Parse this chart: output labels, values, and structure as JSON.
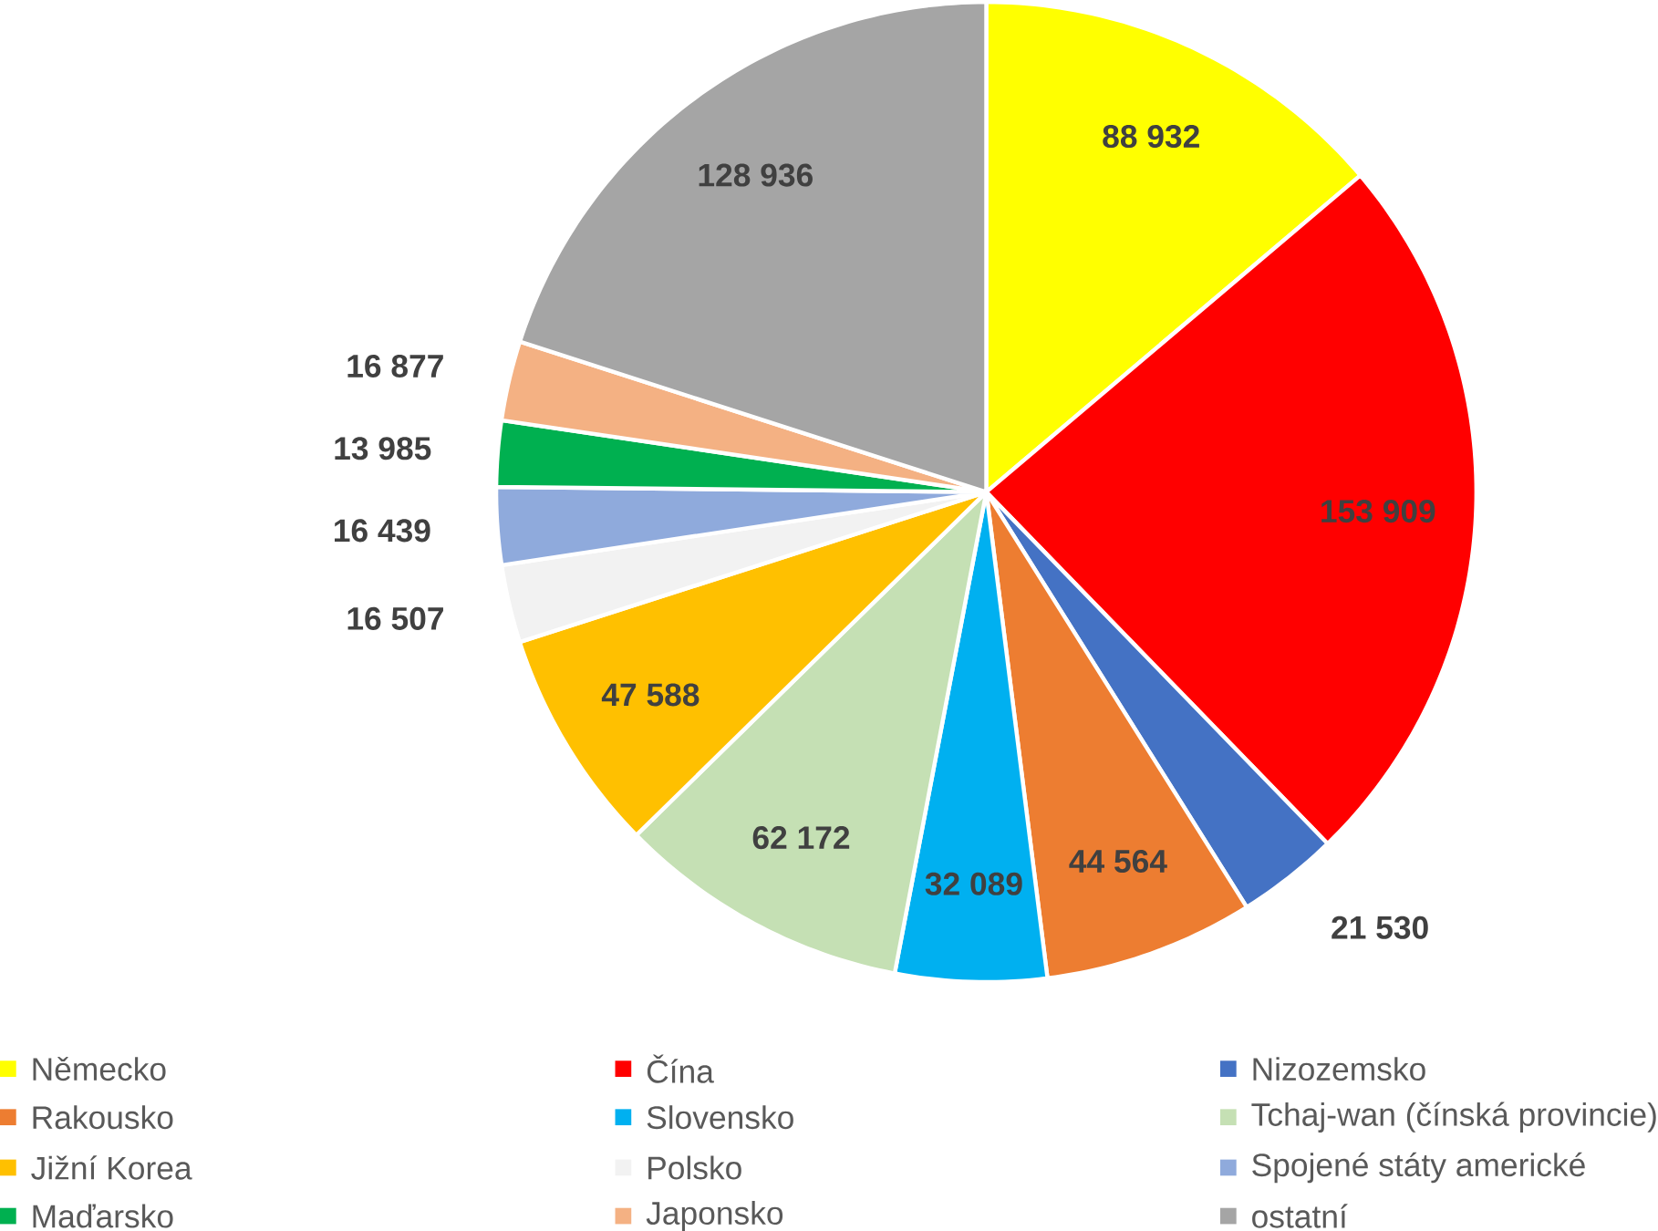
{
  "chart_data": {
    "type": "pie",
    "categories": [
      "Německo",
      "Čína",
      "Nizozemsko",
      "Rakousko",
      "Slovensko",
      "Tchaj-wan (čínská provincie)",
      "Jižní Korea",
      "Polsko",
      "Spojené státy americké",
      "Maďarsko",
      "Japonsko",
      "ostatní"
    ],
    "values": [
      88932,
      153909,
      21530,
      44564,
      32089,
      62172,
      47588,
      16507,
      16439,
      13985,
      16877,
      128936
    ],
    "value_labels": [
      "88 932",
      "153 909",
      "21 530",
      "44 564",
      "32 089",
      "62 172",
      "47 588",
      "16 507",
      "16 439",
      "13 985",
      "16 877",
      "128 936"
    ],
    "colors": [
      "#ffff00",
      "#ff0000",
      "#4472c4",
      "#ed7d31",
      "#00b0f0",
      "#c5e0b4",
      "#ffc000",
      "#f2f2f2",
      "#8faadc",
      "#00b050",
      "#f4b183",
      "#a5a5a5"
    ],
    "legend": "bottom"
  }
}
